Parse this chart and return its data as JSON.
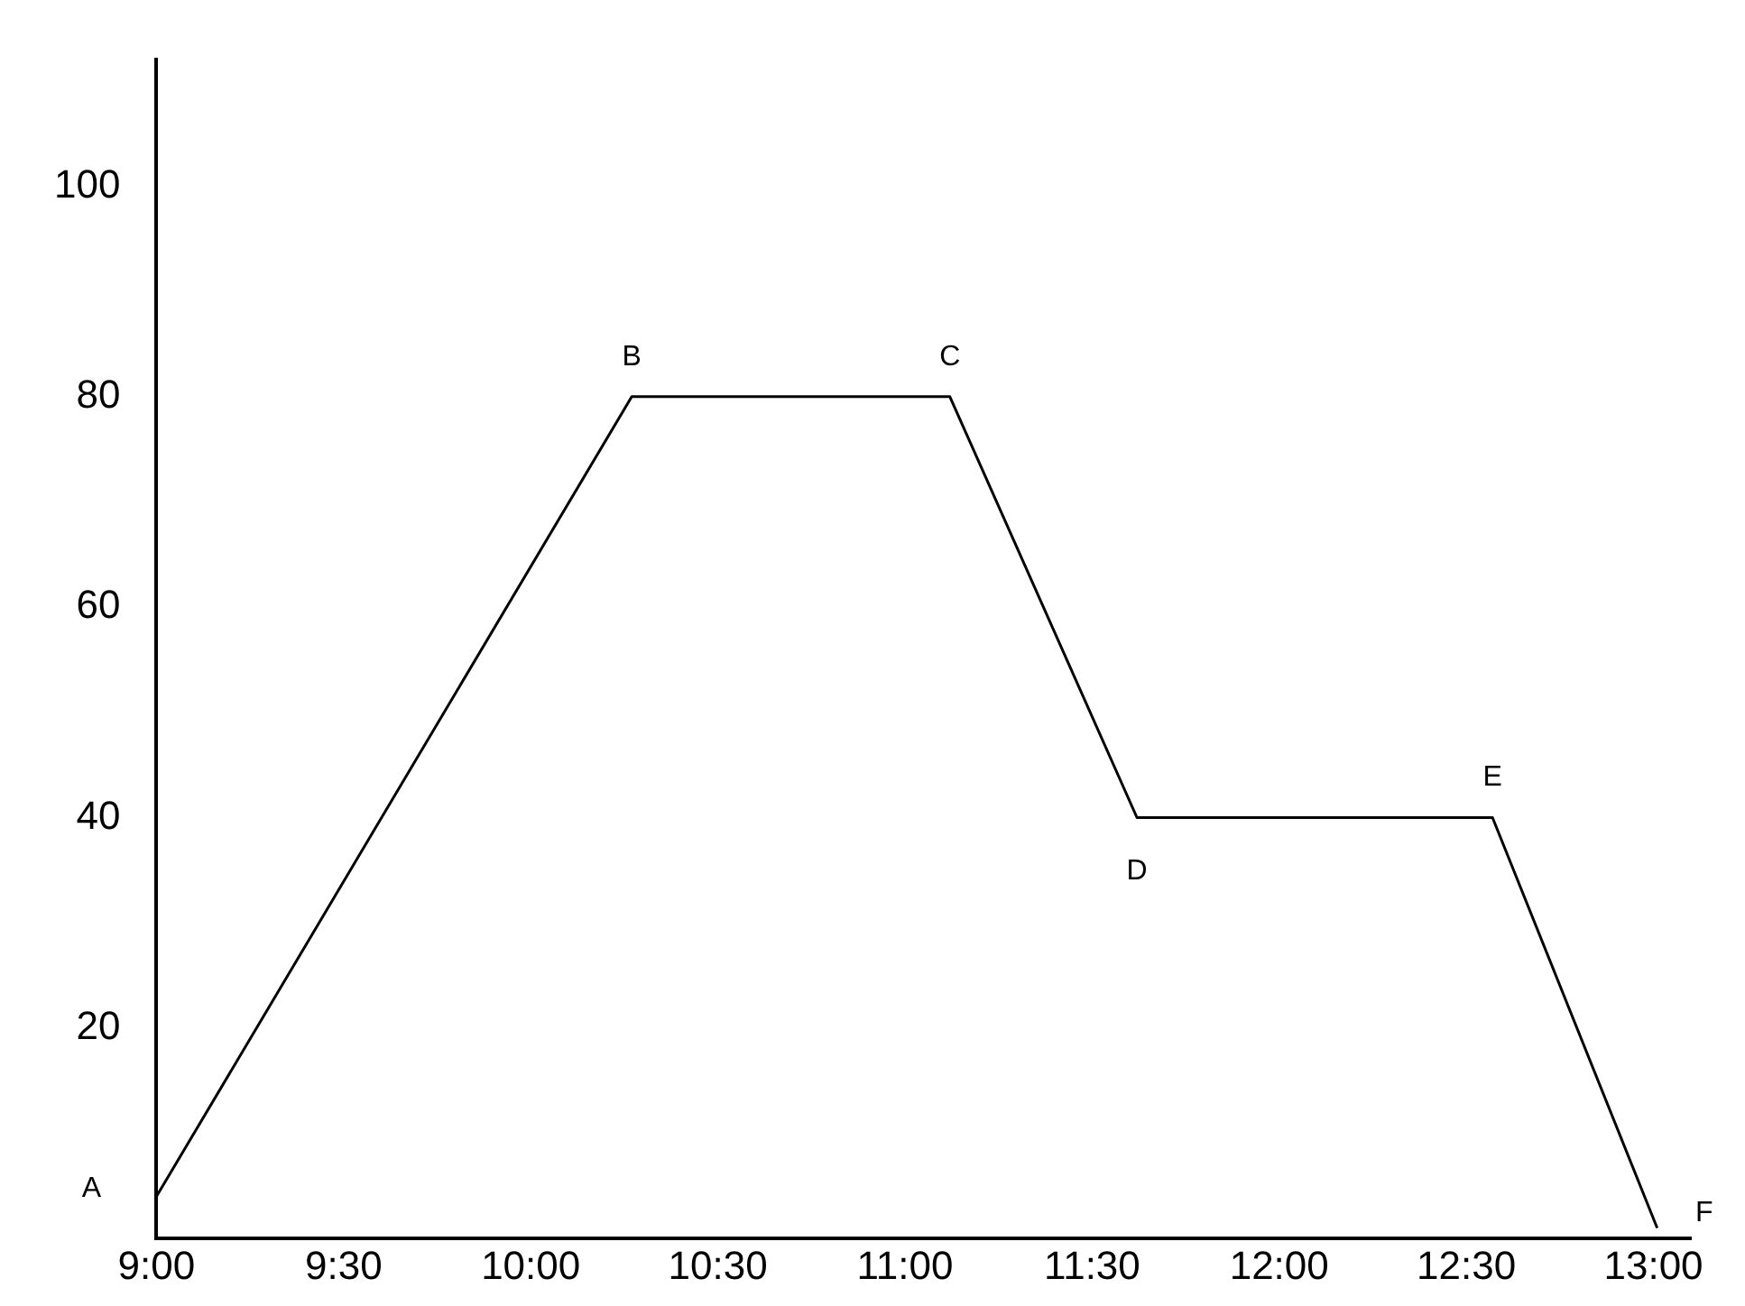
{
  "chart_data": {
    "type": "line",
    "x": [
      9.0,
      10.27,
      11.12,
      11.62,
      12.57,
      13.01
    ],
    "series": [
      {
        "color": "#000000",
        "values": [
          4,
          80,
          80,
          40,
          40,
          1
        ]
      }
    ],
    "xlim": [
      9.0,
      13.1
    ],
    "xticks": [
      {
        "value": 9.0,
        "label": "9:00"
      },
      {
        "value": 9.5,
        "label": "9:30"
      },
      {
        "value": 10.0,
        "label": "10:00"
      },
      {
        "value": 10.5,
        "label": "10:30"
      },
      {
        "value": 11.0,
        "label": "11:00"
      },
      {
        "value": 11.5,
        "label": "11:30"
      },
      {
        "value": 12.0,
        "label": "12:00"
      },
      {
        "value": 12.5,
        "label": "12:30"
      },
      {
        "value": 13.0,
        "label": "13:00"
      }
    ],
    "ylim": [
      0,
      112
    ],
    "yticks": [
      20,
      40,
      60,
      80,
      100
    ],
    "annotations": [
      {
        "text": "A",
        "x": 9.0,
        "y": 4
      },
      {
        "text": "B",
        "x": 10.27,
        "y": 80
      },
      {
        "text": "C",
        "x": 11.12,
        "y": 80
      },
      {
        "text": "D",
        "x": 11.62,
        "y": 40
      },
      {
        "text": "E",
        "x": 12.57,
        "y": 40
      },
      {
        "text": "F",
        "x": 13.01,
        "y": 1
      }
    ],
    "grid": false,
    "legend": false,
    "marker": "none",
    "line_style": "solid"
  }
}
